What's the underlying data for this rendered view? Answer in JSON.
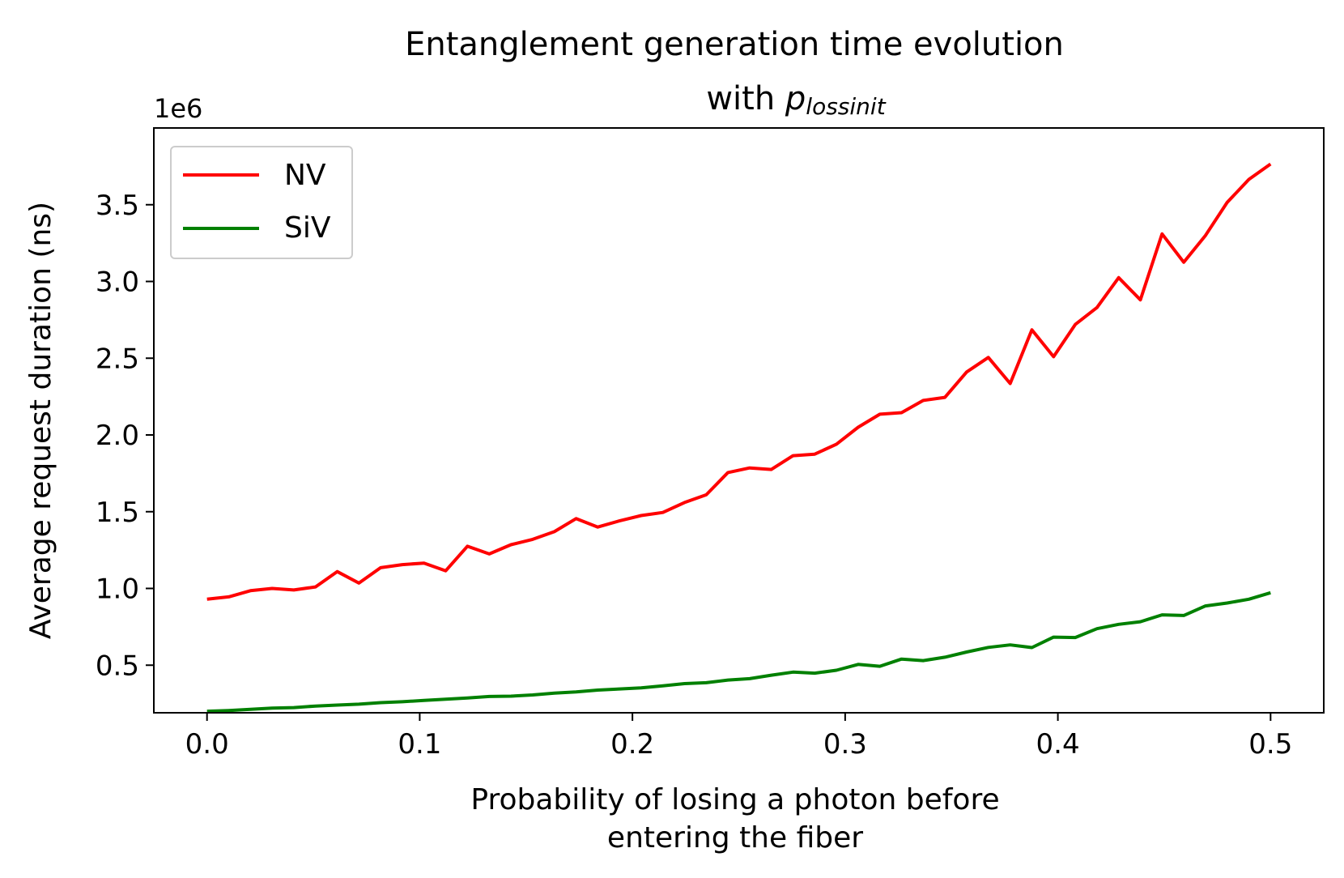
{
  "chart_data": {
    "type": "line",
    "title_line1": "Entanglement generation time evolution",
    "title_line2_prefix": "with ",
    "title_math_base": "p",
    "title_math_sub": "lossinit",
    "xlabel_line1": "Probability of losing a photon before",
    "xlabel_line2": "entering the fiber",
    "ylabel": "Average request duration (ns)",
    "y_offset_label": "1e6",
    "xlim": [
      -0.025,
      0.525
    ],
    "ylim": [
      0.19,
      4.0
    ],
    "x_ticks": [
      0.0,
      0.1,
      0.2,
      0.3,
      0.4,
      0.5
    ],
    "x_tick_labels": [
      "0.0",
      "0.1",
      "0.2",
      "0.3",
      "0.4",
      "0.5"
    ],
    "y_ticks": [
      0.5,
      1.0,
      1.5,
      2.0,
      2.5,
      3.0,
      3.5
    ],
    "y_tick_labels": [
      "0.5",
      "1.0",
      "1.5",
      "2.0",
      "2.5",
      "3.0",
      "3.5"
    ],
    "x": [
      0.0,
      0.0102,
      0.0204,
      0.0306,
      0.0408,
      0.051,
      0.0612,
      0.0714,
      0.0816,
      0.0918,
      0.102,
      0.1122,
      0.1224,
      0.1327,
      0.1429,
      0.1531,
      0.1633,
      0.1735,
      0.1837,
      0.1939,
      0.2041,
      0.2143,
      0.2245,
      0.2347,
      0.2449,
      0.2551,
      0.2653,
      0.2755,
      0.2857,
      0.2959,
      0.3061,
      0.3163,
      0.3265,
      0.3367,
      0.3469,
      0.3571,
      0.3673,
      0.3776,
      0.3878,
      0.398,
      0.4082,
      0.4184,
      0.4286,
      0.4388,
      0.449,
      0.4592,
      0.4694,
      0.4796,
      0.4898,
      0.5
    ],
    "series": [
      {
        "name": "NV",
        "color": "#ff0000",
        "values": [
          0.93,
          0.945,
          0.985,
          1.0,
          0.99,
          1.01,
          1.11,
          1.035,
          1.135,
          1.155,
          1.165,
          1.115,
          1.275,
          1.225,
          1.285,
          1.32,
          1.37,
          1.455,
          1.4,
          1.44,
          1.475,
          1.495,
          1.56,
          1.61,
          1.755,
          1.785,
          1.775,
          1.865,
          1.875,
          1.94,
          2.05,
          2.135,
          2.145,
          2.225,
          2.245,
          2.41,
          2.505,
          2.335,
          2.685,
          2.51,
          2.72,
          2.83,
          3.025,
          2.88,
          3.31,
          3.125,
          3.3,
          3.515,
          3.665,
          3.765
        ]
      },
      {
        "name": "SiV",
        "color": "#008000",
        "values": [
          0.2,
          0.205,
          0.212,
          0.22,
          0.224,
          0.234,
          0.24,
          0.246,
          0.256,
          0.262,
          0.27,
          0.278,
          0.286,
          0.296,
          0.298,
          0.306,
          0.318,
          0.326,
          0.338,
          0.345,
          0.352,
          0.365,
          0.38,
          0.386,
          0.403,
          0.412,
          0.435,
          0.455,
          0.448,
          0.467,
          0.505,
          0.493,
          0.54,
          0.53,
          0.552,
          0.586,
          0.616,
          0.632,
          0.615,
          0.683,
          0.68,
          0.738,
          0.766,
          0.783,
          0.828,
          0.824,
          0.886,
          0.905,
          0.93,
          0.972
        ]
      }
    ],
    "legend_position": "upper-left",
    "grid": false
  }
}
